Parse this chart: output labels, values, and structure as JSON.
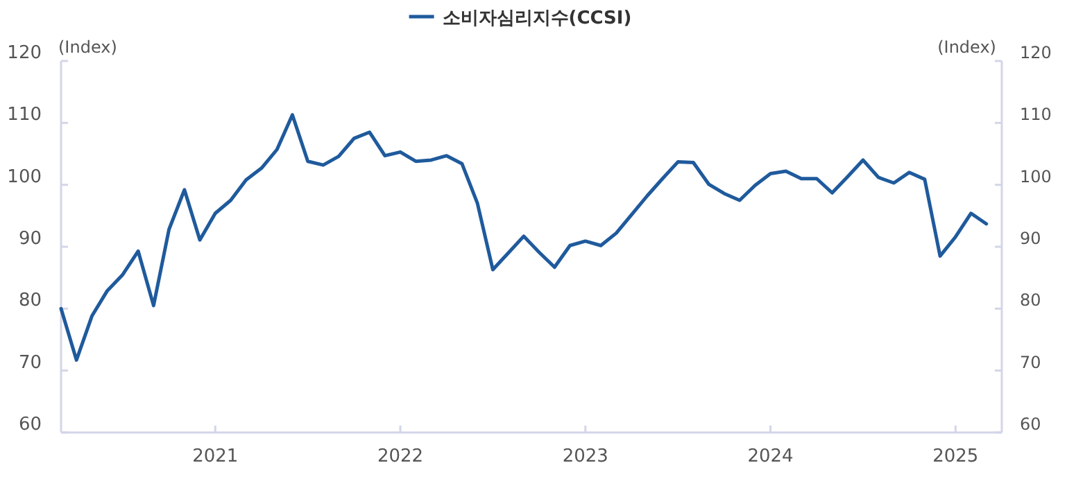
{
  "chart_data": {
    "type": "line",
    "ylabel": "(Index)",
    "y2label": "(Index)",
    "legend": "top",
    "grid": false,
    "marker": "none",
    "line_style": "solid",
    "xlim": [
      "2020-03",
      "2025-04"
    ],
    "xticks": [
      {
        "value": "2021-01",
        "label": "2021"
      },
      {
        "value": "2022-01",
        "label": "2022"
      },
      {
        "value": "2023-01",
        "label": "2023"
      },
      {
        "value": "2024-01",
        "label": "2024"
      },
      {
        "value": "2025-01",
        "label": "2025"
      }
    ],
    "ylim": [
      60,
      120
    ],
    "yticks": [
      60,
      70,
      80,
      90,
      100,
      110,
      120
    ],
    "y2lim": [
      60,
      120
    ],
    "y2ticks": [
      60,
      70,
      80,
      90,
      100,
      110,
      120
    ],
    "x": [
      "2020-03",
      "2020-04",
      "2020-05",
      "2020-06",
      "2020-07",
      "2020-08",
      "2020-09",
      "2020-10",
      "2020-11",
      "2020-12",
      "2021-01",
      "2021-02",
      "2021-03",
      "2021-04",
      "2021-05",
      "2021-06",
      "2021-07",
      "2021-08",
      "2021-09",
      "2021-10",
      "2021-11",
      "2021-12",
      "2022-01",
      "2022-02",
      "2022-03",
      "2022-04",
      "2022-05",
      "2022-06",
      "2022-07",
      "2022-08",
      "2022-09",
      "2022-10",
      "2022-11",
      "2022-12",
      "2023-01",
      "2023-02",
      "2023-03",
      "2023-04",
      "2023-05",
      "2023-06",
      "2023-07",
      "2023-08",
      "2023-09",
      "2023-10",
      "2023-11",
      "2023-12",
      "2024-01",
      "2024-02",
      "2024-03",
      "2024-04",
      "2024-05",
      "2024-06",
      "2024-07",
      "2024-08",
      "2024-09",
      "2024-10",
      "2024-11",
      "2024-12",
      "2025-01",
      "2025-02",
      "2025-03"
    ],
    "series": [
      {
        "name": "소비자심리지수(CCSI)",
        "color": "#1f5a9c",
        "values": [
          80.0,
          71.7,
          78.8,
          82.9,
          85.5,
          89.3,
          80.5,
          92.8,
          99.2,
          91.1,
          95.4,
          97.5,
          100.8,
          102.7,
          105.7,
          111.3,
          103.8,
          103.2,
          104.6,
          107.5,
          108.5,
          104.7,
          105.3,
          103.8,
          104.0,
          104.7,
          103.4,
          97.0,
          86.3,
          89.0,
          91.7,
          89.1,
          86.7,
          90.2,
          90.9,
          90.2,
          92.2,
          95.2,
          98.2,
          101.0,
          103.7,
          103.6,
          100.1,
          98.6,
          97.5,
          99.9,
          101.8,
          102.2,
          101.0,
          101.0,
          98.7,
          101.3,
          104.0,
          101.2,
          100.3,
          102.0,
          100.9,
          88.5,
          91.6,
          95.4,
          93.7
        ]
      }
    ]
  }
}
